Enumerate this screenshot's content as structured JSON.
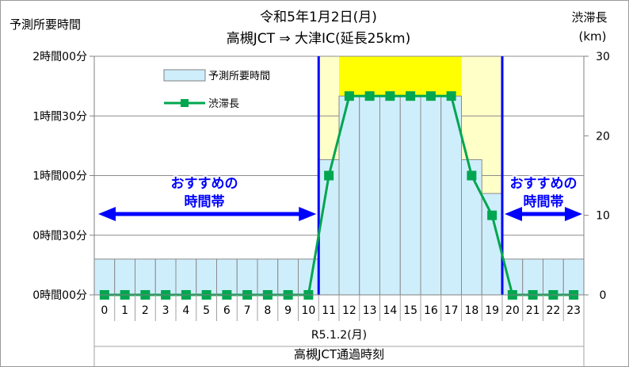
{
  "chart_data": {
    "type": "bar",
    "title": "令和5年1月2日(月)",
    "subtitle": "高槻JCT ⇒ 大津IC(延長25km)",
    "ylabel": "予測所要時間",
    "y2label": "渋滞長",
    "y2unit": "(km)",
    "xlabel": "高槻JCT通過時刻",
    "date_label": "R5.1.2(月)",
    "recommend_label_1": "おすすめの",
    "recommend_label_2": "時間帯",
    "categories": [
      "0",
      "1",
      "2",
      "3",
      "4",
      "5",
      "6",
      "7",
      "8",
      "9",
      "10",
      "11",
      "12",
      "13",
      "14",
      "15",
      "16",
      "17",
      "18",
      "19",
      "20",
      "21",
      "22",
      "23"
    ],
    "y_ticks": [
      {
        "label": "0時間00分",
        "value": 0
      },
      {
        "label": "0時間30分",
        "value": 30
      },
      {
        "label": "1時間00分",
        "value": 60
      },
      {
        "label": "1時間30分",
        "value": 90
      },
      {
        "label": "2時間00分",
        "value": 120
      }
    ],
    "y2_ticks": [
      0,
      10,
      20,
      30
    ],
    "ylim": [
      0,
      120
    ],
    "y2lim": [
      0,
      30
    ],
    "grid": true,
    "legend_position": "top-left",
    "series": [
      {
        "name": "予測所要時間",
        "kind": "bar",
        "axis": "left",
        "color": "#cfeefc",
        "values": [
          18,
          18,
          18,
          18,
          18,
          18,
          18,
          18,
          18,
          18,
          18,
          68,
          100,
          100,
          100,
          100,
          100,
          100,
          68,
          51,
          18,
          18,
          18,
          18
        ]
      },
      {
        "name": "渋滞長",
        "kind": "line",
        "axis": "right",
        "color": "#00a650",
        "values": [
          0,
          0,
          0,
          0,
          0,
          0,
          0,
          0,
          0,
          0,
          0,
          15,
          25,
          25,
          25,
          25,
          25,
          25,
          15,
          10,
          0,
          0,
          0,
          0
        ]
      }
    ],
    "peak_band": {
      "from": 12,
      "to": 17,
      "color": "#ffff00"
    },
    "shoulder_band": {
      "from": 11,
      "to": 19,
      "color": "#ffffc8"
    },
    "recommended_ranges": [
      [
        0,
        10
      ],
      [
        20,
        23
      ]
    ],
    "accent_color": "#0000ff"
  }
}
